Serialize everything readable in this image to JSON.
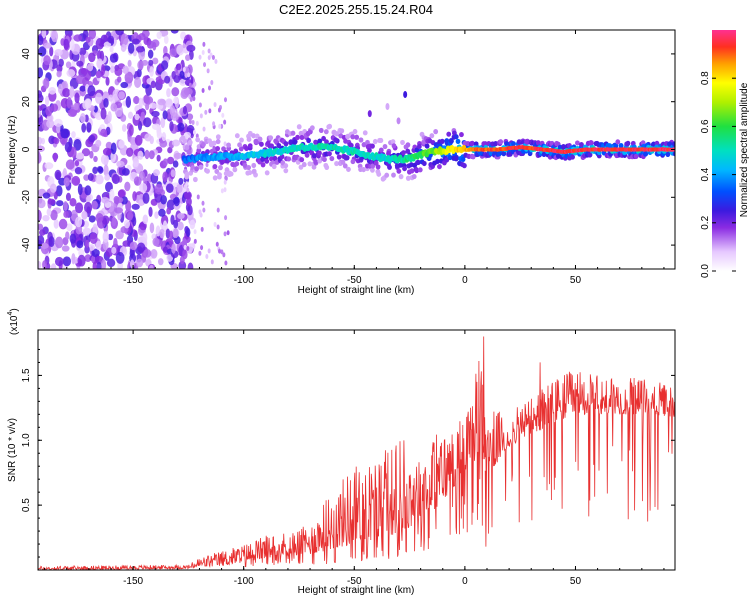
{
  "title": "C2E2.2025.255.15.24.R04",
  "chart_data": [
    {
      "type": "heatmap",
      "name": "spectrogram",
      "xlabel": "Height of straight line (km)",
      "ylabel": "Frequency (Hz)",
      "xlim": [
        -193,
        95
      ],
      "ylim": [
        -50,
        50
      ],
      "xticks": [
        -150,
        -100,
        -50,
        0,
        50
      ],
      "yticks": [
        -40,
        -20,
        0,
        20,
        40
      ],
      "xtick_labels": [
        "-150",
        "-100",
        "-50",
        "0",
        "50"
      ],
      "ytick_labels": [
        "-40",
        "-20",
        "0",
        "20",
        "40"
      ],
      "colorbar": {
        "label": "Normalized spectral amplitude",
        "range": [
          0,
          1
        ],
        "ticks": [
          0.0,
          0.2,
          0.4,
          0.6,
          0.8
        ],
        "tick_labels": [
          "0.0",
          "0.2",
          "0.4",
          "0.6",
          "0.8"
        ]
      },
      "ridge": {
        "description": "dominant frequency track vs height",
        "x": [
          -125,
          -115,
          -105,
          -95,
          -85,
          -75,
          -65,
          -55,
          -45,
          -35,
          -25,
          -15,
          -5,
          5,
          15,
          25,
          35,
          45,
          55,
          65,
          75,
          85,
          95
        ],
        "frequency": [
          -4,
          -3,
          -3,
          -2,
          -1,
          1,
          1,
          0,
          -2,
          -4,
          -4,
          -1,
          0,
          0,
          0,
          1,
          0,
          -1,
          0,
          0,
          0,
          0,
          0
        ],
        "amplitude": [
          0.35,
          0.4,
          0.42,
          0.45,
          0.48,
          0.5,
          0.52,
          0.5,
          0.5,
          0.48,
          0.55,
          0.65,
          0.8,
          0.9,
          0.92,
          0.93,
          0.94,
          0.95,
          0.95,
          0.95,
          0.95,
          0.95,
          0.95
        ]
      },
      "noise_region": {
        "x_range": [
          -193,
          -127
        ],
        "frequency_range": [
          -50,
          50
        ],
        "amplitude_range": [
          0.05,
          0.25
        ]
      }
    },
    {
      "type": "line",
      "name": "snr",
      "xlabel": "Height of straight line (km)",
      "ylabel": "SNR (10 * v/v)",
      "ylabel_scale_note": "(x10",
      "ylabel_scale_exponent": "4",
      "ylabel_scale_close": ")",
      "color": "#e83030",
      "xlim": [
        -193,
        95
      ],
      "ylim": [
        0,
        1.85
      ],
      "xticks": [
        -150,
        -100,
        -50,
        0,
        50
      ],
      "yticks": [
        0.5,
        1.0,
        1.5
      ],
      "xtick_labels": [
        "-150",
        "-100",
        "-50",
        "0",
        "50"
      ],
      "ytick_labels": [
        "0.5",
        "1.0",
        "1.5"
      ],
      "envelope": {
        "x": [
          -193,
          -125,
          -120,
          -110,
          -100,
          -90,
          -80,
          -70,
          -60,
          -50,
          -40,
          -30,
          -20,
          -10,
          0,
          8,
          10,
          20,
          30,
          40,
          50,
          60,
          70,
          80,
          95
        ],
        "base": [
          0.0,
          0.01,
          0.02,
          0.03,
          0.06,
          0.09,
          0.11,
          0.12,
          0.16,
          0.2,
          0.24,
          0.28,
          0.38,
          0.52,
          0.76,
          0.9,
          0.72,
          0.95,
          1.05,
          1.12,
          1.2,
          1.2,
          1.2,
          1.2,
          1.18
        ],
        "peak": [
          0.03,
          0.04,
          0.1,
          0.15,
          0.2,
          0.27,
          0.3,
          0.35,
          0.62,
          0.82,
          0.88,
          1.02,
          0.98,
          1.08,
          1.2,
          1.8,
          1.25,
          1.2,
          1.35,
          1.48,
          1.55,
          1.5,
          1.48,
          1.48,
          1.42
        ]
      },
      "notable_points": [
        {
          "x": 8.5,
          "y": 1.8
        },
        {
          "x": 9.5,
          "y": 0.18
        },
        {
          "x": 34,
          "y": 1.6
        }
      ]
    }
  ]
}
